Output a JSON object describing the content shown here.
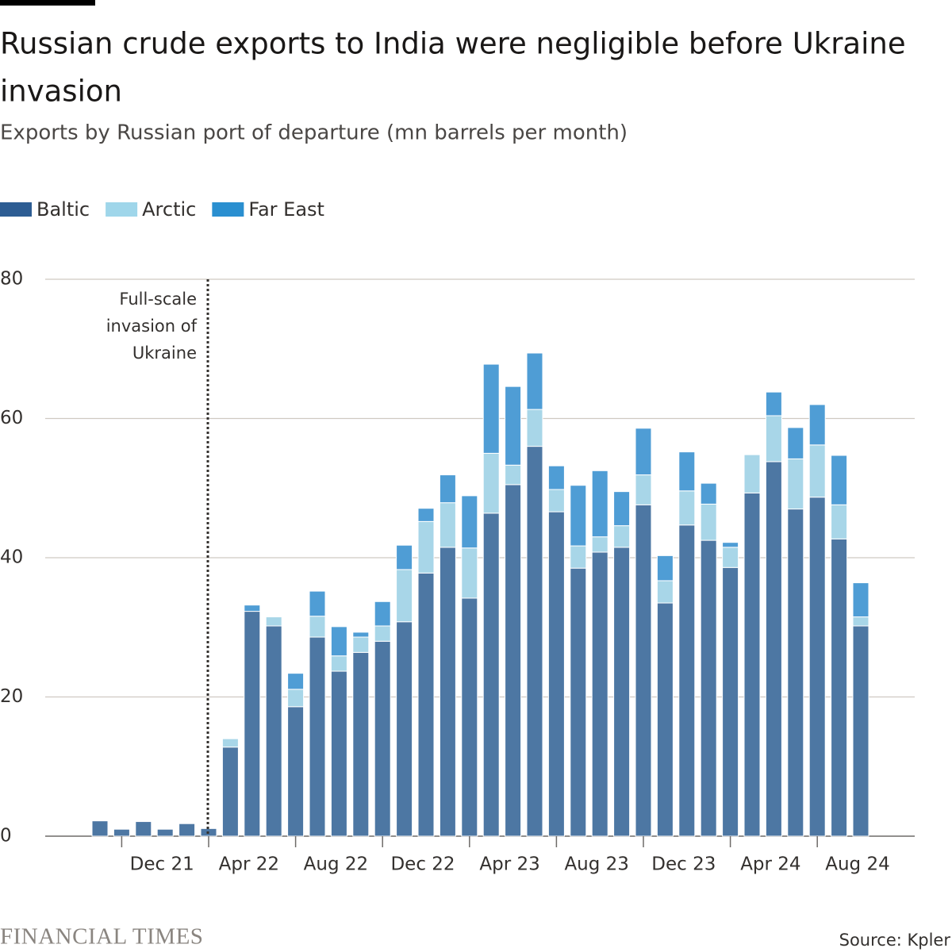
{
  "chart_data": {
    "type": "stacked-bar",
    "title": [
      "Russian crude exports to India were negligible before Ukraine",
      "invasion"
    ],
    "subtitle": "Exports by Russian port of departure (mn barrels per month)",
    "categories": [
      null,
      null,
      null,
      "Dec 21",
      null,
      null,
      null,
      "Apr 22",
      null,
      null,
      null,
      "Aug 22",
      null,
      null,
      null,
      "Dec 22",
      null,
      null,
      null,
      "Apr 23",
      null,
      null,
      null,
      "Aug 23",
      null,
      null,
      null,
      "Dec 23",
      null,
      null,
      null,
      "Apr 24",
      null,
      null,
      null,
      "Aug 24"
    ],
    "series": [
      {
        "name": "Baltic",
        "color": "#4d77a3",
        "legend_color": "#2d5d93",
        "values": [
          2.2,
          1.0,
          2.1,
          1.0,
          1.8,
          1.1,
          12.8,
          32.3,
          30.2,
          18.6,
          28.6,
          23.7,
          26.4,
          28.0,
          30.8,
          37.8,
          41.5,
          34.2,
          46.4,
          50.5,
          56.0,
          46.6,
          38.5,
          40.8,
          41.5,
          47.6,
          33.5,
          44.7,
          42.5,
          38.6,
          49.3,
          53.8,
          47.0,
          48.7,
          42.7,
          30.2
        ]
      },
      {
        "name": "Arctic",
        "color": "#a8d6e8",
        "legend_color": "#9fd6ea",
        "values": [
          0,
          0,
          0,
          0,
          0,
          0,
          1.2,
          0,
          1.3,
          2.5,
          3.0,
          2.2,
          2.2,
          2.2,
          7.5,
          7.4,
          6.4,
          7.2,
          8.6,
          2.8,
          5.3,
          3.2,
          3.2,
          2.2,
          3.1,
          4.3,
          3.2,
          4.9,
          5.2,
          2.9,
          5.5,
          6.6,
          7.2,
          7.5,
          4.9,
          1.3
        ]
      },
      {
        "name": "Far East",
        "color": "#4f9dd5",
        "legend_color": "#2a8fd0",
        "values": [
          0,
          0,
          0,
          0,
          0,
          0,
          0,
          0.9,
          0,
          2.3,
          3.6,
          4.2,
          0.7,
          3.5,
          3.5,
          1.9,
          4.0,
          7.5,
          12.8,
          11.3,
          8.1,
          3.4,
          8.7,
          9.5,
          4.9,
          6.7,
          3.6,
          5.6,
          3.0,
          0.7,
          0,
          3.4,
          4.5,
          5.8,
          7.1,
          4.9
        ]
      }
    ],
    "ylim": [
      0,
      80
    ],
    "yticks": [
      0,
      20,
      40,
      60,
      80
    ],
    "grid": true,
    "annotation": [
      "Full-scale",
      "invasion of",
      "Ukraine"
    ],
    "brand": "FINANCIAL TIMES",
    "source": "Source: Kpler"
  }
}
